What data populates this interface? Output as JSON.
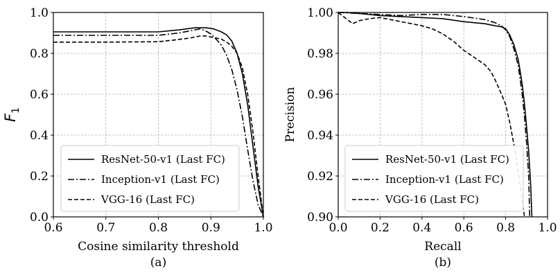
{
  "chart_data": [
    {
      "type": "line",
      "caption": "(a)",
      "xlabel": "Cosine similarity threshold",
      "ylabel_main": "F",
      "ylabel_sub": "1",
      "xlim": [
        0.6,
        1.0
      ],
      "ylim": [
        0.0,
        1.0
      ],
      "xticks": [
        "0.6",
        "0.7",
        "0.8",
        "0.9",
        "1.0"
      ],
      "yticks": [
        "0.0",
        "0.2",
        "0.4",
        "0.6",
        "0.8",
        "1.0"
      ],
      "grid": true,
      "legend_position": "lower-left",
      "series": [
        {
          "name": "ResNet-50-v1 (Last FC)",
          "style": "solid",
          "x": [
            0.6,
            0.7,
            0.8,
            0.84,
            0.87,
            0.89,
            0.905,
            0.92,
            0.93,
            0.94,
            0.95,
            0.96,
            0.97,
            0.98,
            0.99,
            1.0
          ],
          "y": [
            0.905,
            0.905,
            0.905,
            0.915,
            0.925,
            0.925,
            0.92,
            0.905,
            0.89,
            0.86,
            0.8,
            0.7,
            0.55,
            0.35,
            0.15,
            0.0
          ]
        },
        {
          "name": "Inception-v1 (Last FC)",
          "style": "dashdot",
          "x": [
            0.6,
            0.7,
            0.8,
            0.84,
            0.87,
            0.88,
            0.89,
            0.9,
            0.91,
            0.92,
            0.93,
            0.94,
            0.95,
            0.96,
            0.97,
            0.98,
            0.99,
            1.0
          ],
          "y": [
            0.888,
            0.888,
            0.888,
            0.9,
            0.915,
            0.92,
            0.91,
            0.895,
            0.87,
            0.84,
            0.79,
            0.72,
            0.62,
            0.49,
            0.33,
            0.18,
            0.06,
            0.0
          ]
        },
        {
          "name": "VGG-16 (Last FC)",
          "style": "dashed",
          "x": [
            0.6,
            0.7,
            0.8,
            0.83,
            0.86,
            0.88,
            0.89,
            0.9,
            0.91,
            0.92,
            0.93,
            0.94,
            0.95,
            0.96,
            0.97,
            0.98,
            0.99,
            1.0
          ],
          "y": [
            0.855,
            0.855,
            0.857,
            0.865,
            0.875,
            0.885,
            0.885,
            0.88,
            0.875,
            0.87,
            0.855,
            0.835,
            0.8,
            0.73,
            0.6,
            0.42,
            0.2,
            0.0
          ]
        }
      ]
    },
    {
      "type": "line",
      "caption": "(b)",
      "xlabel": "Recall",
      "ylabel": "Precision",
      "xlim": [
        0.0,
        1.0
      ],
      "ylim": [
        0.9,
        1.0
      ],
      "xticks": [
        "0.0",
        "0.2",
        "0.4",
        "0.6",
        "0.8",
        "1.0"
      ],
      "yticks": [
        "0.90",
        "0.92",
        "0.94",
        "0.96",
        "0.98",
        "1.00"
      ],
      "grid": true,
      "legend_position": "lower-left",
      "series": [
        {
          "name": "ResNet-50-v1 (Last FC)",
          "style": "solid",
          "x": [
            0.0,
            0.05,
            0.1,
            0.2,
            0.3,
            0.4,
            0.5,
            0.6,
            0.7,
            0.75,
            0.78,
            0.8,
            0.82,
            0.84,
            0.86,
            0.87,
            0.88,
            0.89,
            0.9,
            0.91,
            0.92,
            0.925
          ],
          "y": [
            1.0,
            1.0,
            0.9995,
            0.9985,
            0.998,
            0.9975,
            0.997,
            0.9955,
            0.9945,
            0.9935,
            0.993,
            0.992,
            0.989,
            0.984,
            0.977,
            0.971,
            0.964,
            0.955,
            0.944,
            0.932,
            0.915,
            0.9
          ]
        },
        {
          "name": "Inception-v1 (Last FC)",
          "style": "dashdot",
          "x": [
            0.0,
            0.1,
            0.2,
            0.3,
            0.4,
            0.5,
            0.55,
            0.6,
            0.7,
            0.75,
            0.78,
            0.8,
            0.82,
            0.84,
            0.86,
            0.87,
            0.88,
            0.89,
            0.9,
            0.91,
            0.915
          ],
          "y": [
            1.0,
            0.9995,
            0.999,
            0.9985,
            0.999,
            0.999,
            0.9985,
            0.998,
            0.9965,
            0.995,
            0.9935,
            0.9915,
            0.988,
            0.982,
            0.974,
            0.967,
            0.959,
            0.949,
            0.936,
            0.92,
            0.9
          ]
        },
        {
          "name": "VGG-16 (Last FC)",
          "style": "dashed",
          "x": [
            0.0,
            0.05,
            0.07,
            0.1,
            0.15,
            0.2,
            0.3,
            0.35,
            0.4,
            0.45,
            0.5,
            0.55,
            0.6,
            0.65,
            0.7,
            0.73,
            0.75,
            0.78,
            0.8,
            0.82,
            0.84,
            0.86,
            0.87,
            0.88,
            0.89
          ],
          "y": [
            1.0,
            0.996,
            0.9945,
            0.996,
            0.997,
            0.9975,
            0.9955,
            0.9945,
            0.9935,
            0.992,
            0.9895,
            0.986,
            0.9815,
            0.978,
            0.9745,
            0.971,
            0.967,
            0.96,
            0.955,
            0.946,
            0.935,
            0.922,
            0.915,
            0.907,
            0.9
          ]
        }
      ]
    }
  ]
}
